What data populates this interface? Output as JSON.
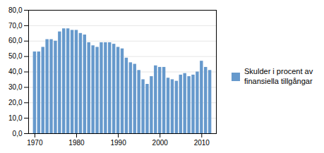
{
  "chart_data": {
    "type": "bar",
    "x": [
      1970,
      1971,
      1972,
      1973,
      1974,
      1975,
      1976,
      1977,
      1978,
      1979,
      1980,
      1981,
      1982,
      1983,
      1984,
      1985,
      1986,
      1987,
      1988,
      1989,
      1990,
      1991,
      1992,
      1993,
      1994,
      1995,
      1996,
      1997,
      1998,
      1999,
      2000,
      2001,
      2002,
      2003,
      2004,
      2005,
      2006,
      2007,
      2008,
      2009,
      2010,
      2011,
      2012
    ],
    "series": [
      {
        "name": "Skulder i procent av\nfinansiella tillgångar",
        "color": "#6699cc",
        "values": [
          53,
          53,
          56,
          61,
          61,
          60,
          66,
          68,
          68,
          67,
          67,
          65,
          64,
          59,
          57,
          56,
          59,
          59,
          59,
          58,
          56,
          55,
          49,
          46,
          45,
          41,
          35,
          32,
          37,
          44,
          43,
          43,
          36,
          35,
          34,
          38,
          39,
          37,
          38,
          40,
          47,
          43,
          41
        ]
      }
    ],
    "xlim": [
      1968.5,
      2013.5
    ],
    "xticks": [
      1970,
      1980,
      1990,
      2000,
      2010
    ],
    "ylim": [
      0,
      80
    ],
    "yticks": [
      {
        "value": 0,
        "label": "0,0"
      },
      {
        "value": 10,
        "label": "10,0"
      },
      {
        "value": 20,
        "label": "20,0"
      },
      {
        "value": 30,
        "label": "30,0"
      },
      {
        "value": 40,
        "label": "40,0"
      },
      {
        "value": 50,
        "label": "50,0"
      },
      {
        "value": 60,
        "label": "60,0"
      },
      {
        "value": 70,
        "label": "70,0"
      },
      {
        "value": 80,
        "label": "80,0"
      }
    ],
    "grid": true,
    "legend": "right"
  }
}
